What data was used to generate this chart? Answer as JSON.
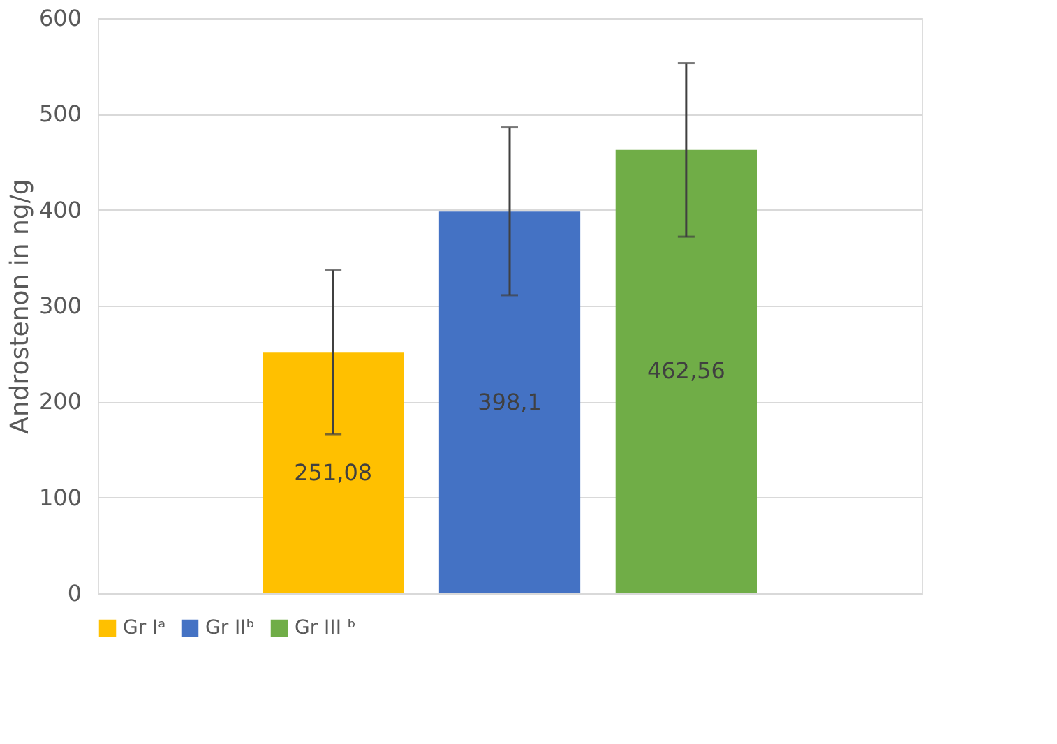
{
  "chart_data": {
    "type": "bar",
    "ylabel": "Androstenon in ng/g",
    "categories": [
      null
    ],
    "series": [
      {
        "name": "Gr Iᵃ",
        "color": "#ffc000",
        "values": [
          251.08
        ],
        "errors": [
          [
            166,
            337
          ]
        ],
        "value_labels": [
          "251,08"
        ]
      },
      {
        "name": "Gr IIᵇ",
        "color": "#4472c4",
        "values": [
          398.1
        ],
        "errors": [
          [
            311,
            486
          ]
        ],
        "value_labels": [
          "398,1"
        ]
      },
      {
        "name": "Gr III ᵇ",
        "color": "#70ad47",
        "values": [
          462.56
        ],
        "errors": [
          [
            372,
            553
          ]
        ],
        "value_labels": [
          "462,56"
        ]
      }
    ],
    "ylim": [
      0,
      600
    ],
    "yticks": [
      0,
      100,
      200,
      300,
      400,
      500,
      600
    ],
    "grid": "y",
    "legend": "bottom"
  }
}
